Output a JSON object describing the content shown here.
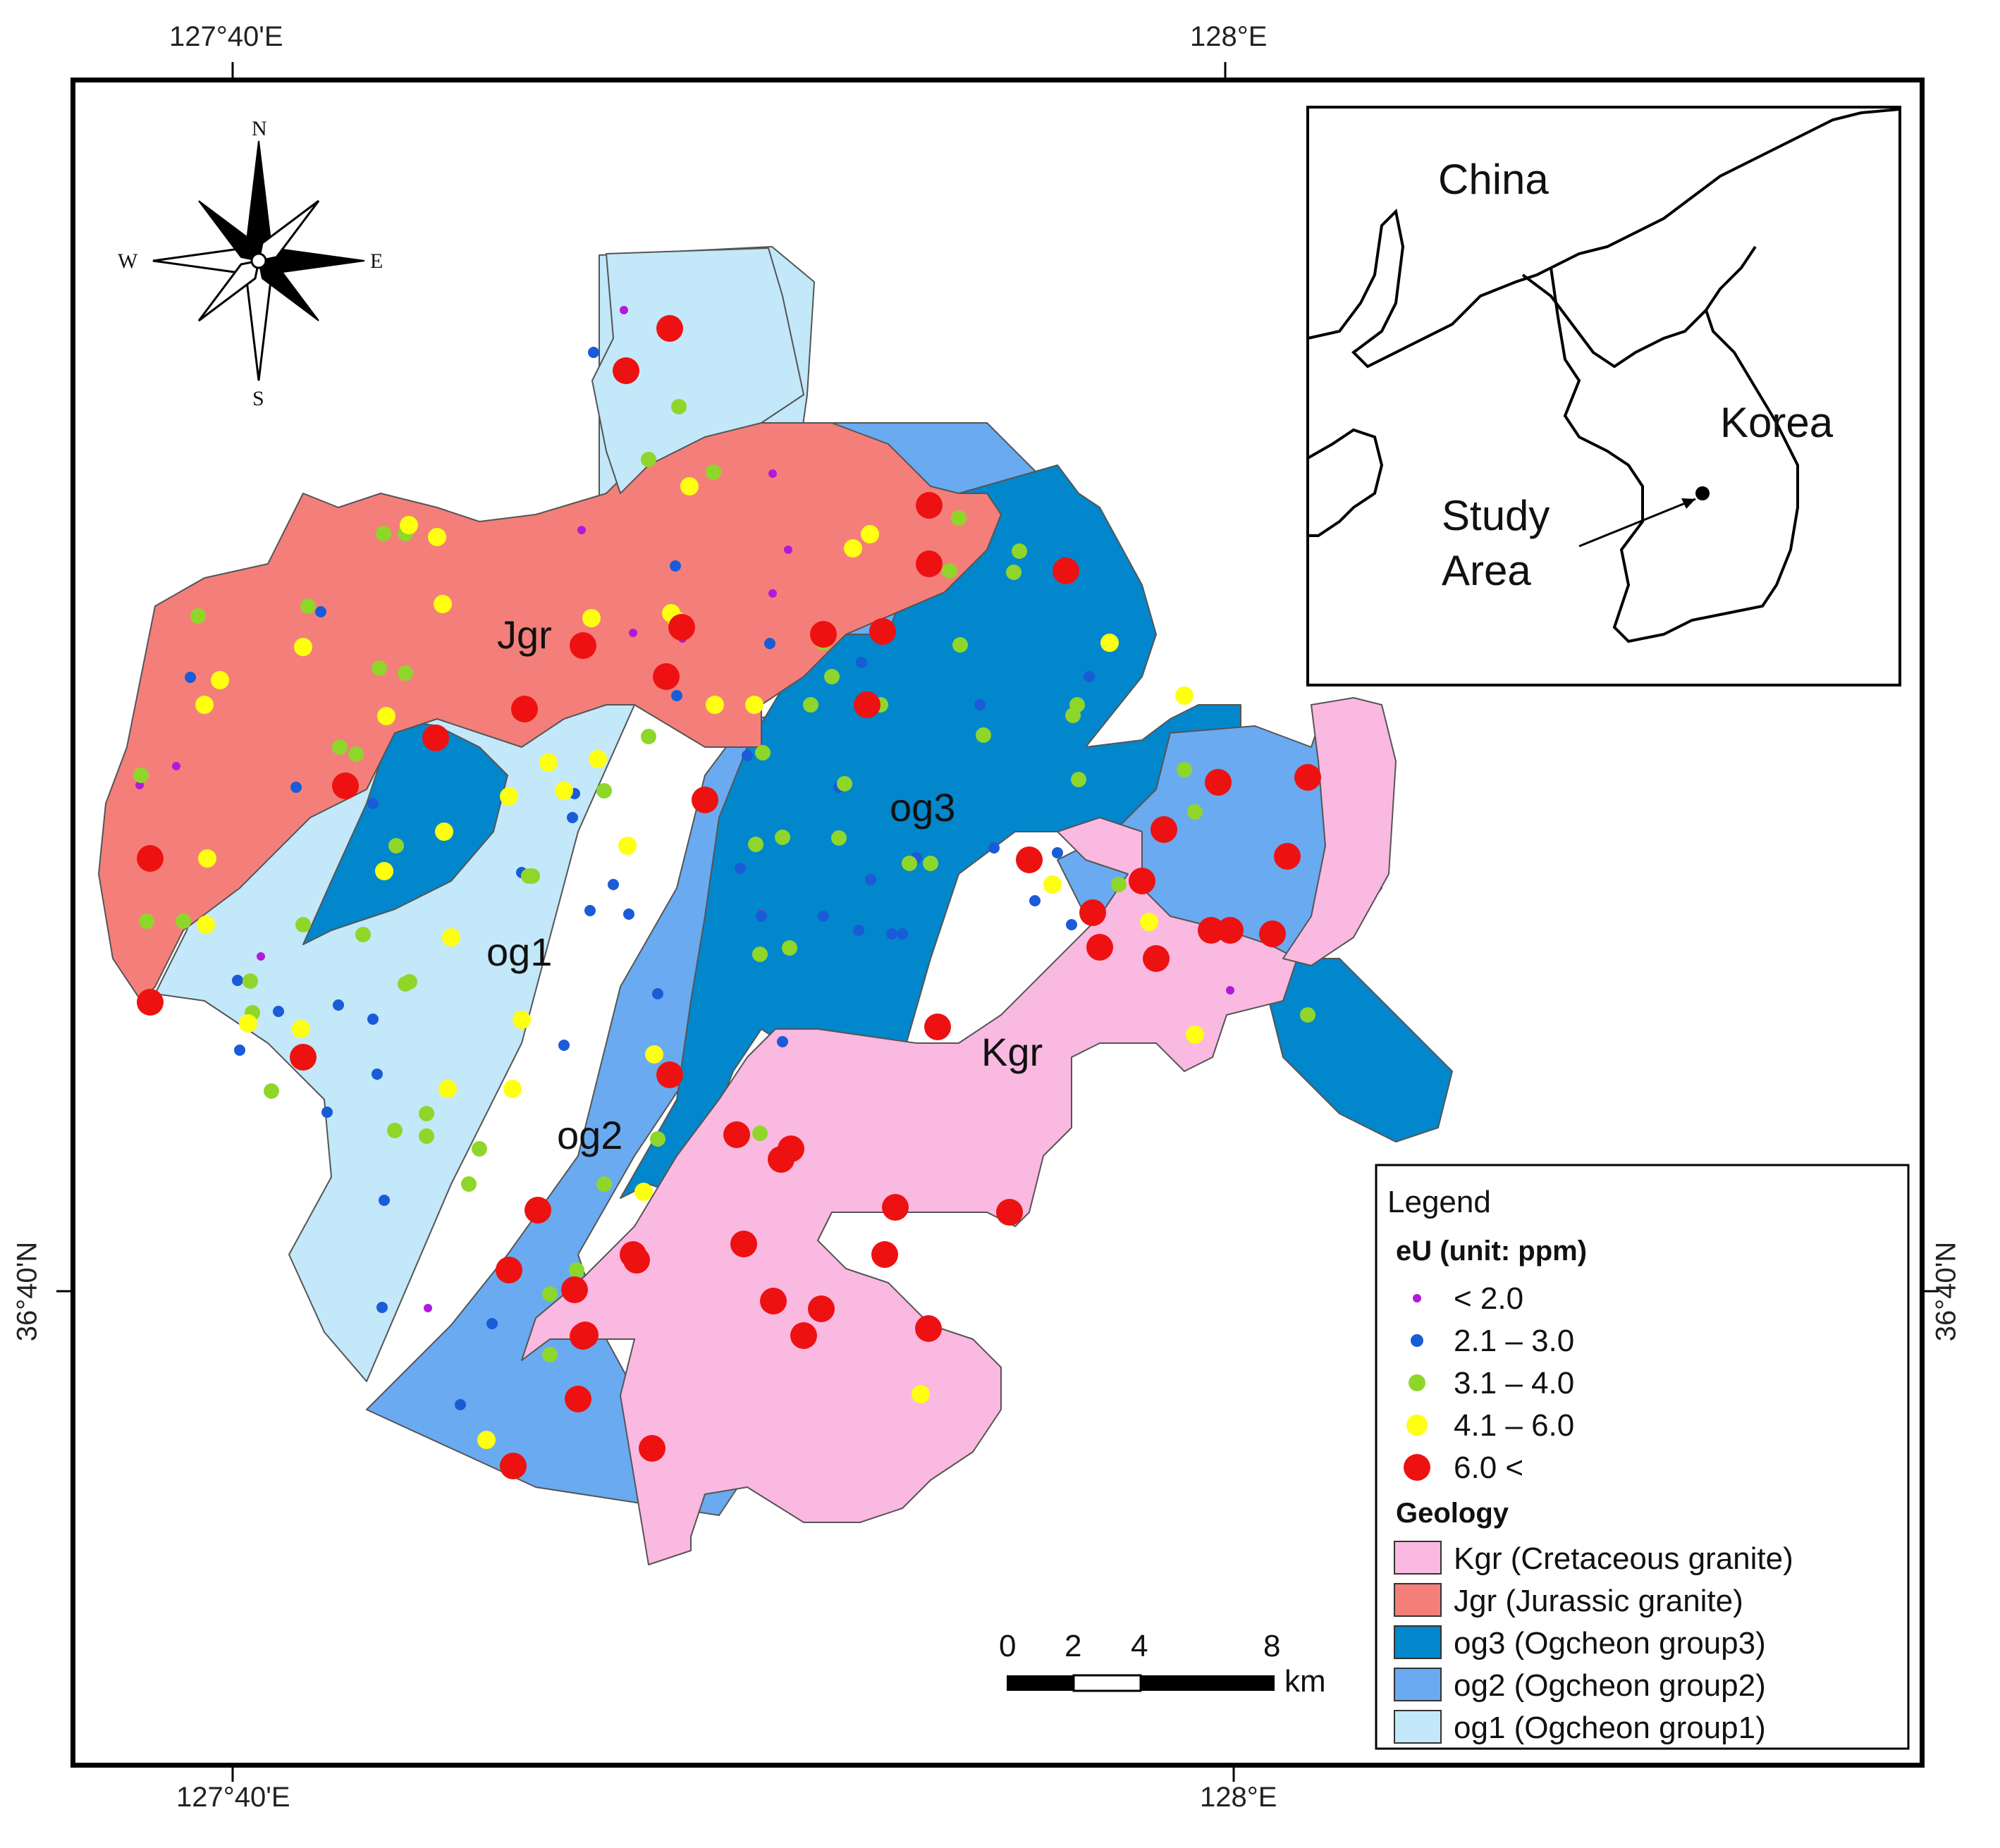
{
  "coordinates": {
    "top_left": "127°40'E",
    "top_right": "128°E",
    "bottom_left": "127°40'E",
    "bottom_right": "128°E",
    "left": "36°40'N",
    "right": "36°40'N"
  },
  "compass": {
    "n": "N",
    "s": "S",
    "e": "E",
    "w": "W"
  },
  "inset": {
    "china": "China",
    "korea": "Korea",
    "study_line1": "Study",
    "study_line2": "Area"
  },
  "units": {
    "jgr": "Jgr",
    "og1": "og1",
    "og2": "og2",
    "og3": "og3",
    "kgr": "Kgr"
  },
  "legend": {
    "title": "Legend",
    "eu_heading": "eU (unit: ppm)",
    "eu_classes": [
      "< 2.0",
      "2.1 – 3.0",
      "3.1 – 4.0",
      "4.1 – 6.0",
      "6.0 <"
    ],
    "geology_heading": "Geology",
    "geology_classes": [
      "Kgr (Cretaceous granite)",
      "Jgr (Jurassic granite)",
      "og3 (Ogcheon group3)",
      "og2 (Ogcheon group2)",
      "og1 (Ogcheon group1)"
    ]
  },
  "scale_bar": {
    "ticks": [
      "0",
      "2",
      "4",
      "8"
    ],
    "unit": "km"
  },
  "colors": {
    "kgr": "#f9b9e0",
    "jgr": "#f47f7a",
    "og3": "#0287cc",
    "og2": "#6aaaf0",
    "og1": "#c2e8f9",
    "eu_lt2": "#b21adb",
    "eu_2_3": "#1a5bd8",
    "eu_3_4": "#8fd62a",
    "eu_4_6": "#ffff10",
    "eu_gt6": "#ee1111"
  }
}
